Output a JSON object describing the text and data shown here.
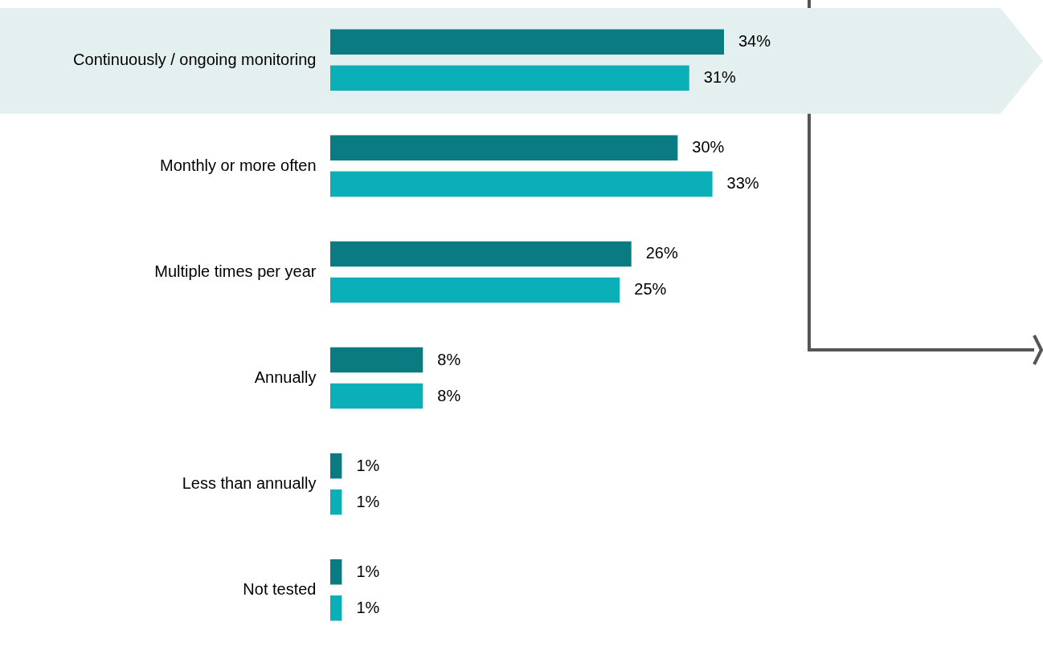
{
  "chart_data": {
    "type": "bar",
    "orientation": "horizontal",
    "categories": [
      "Continuously / ongoing monitoring",
      "Monthly or more often",
      "Multiple times per year",
      "Annually",
      "Less than annually",
      "Not tested"
    ],
    "series": [
      {
        "color": "#0b7b82",
        "values": [
          34,
          30,
          26,
          8,
          1,
          1
        ],
        "value_labels": [
          "34%",
          "30%",
          "26%",
          "8%",
          "1%",
          "1%"
        ]
      },
      {
        "color": "#0aafb8",
        "values": [
          31,
          33,
          25,
          8,
          1,
          1
        ],
        "value_labels": [
          "31%",
          "33%",
          "25%",
          "8%",
          "1%",
          "1%"
        ]
      }
    ]
  }
}
